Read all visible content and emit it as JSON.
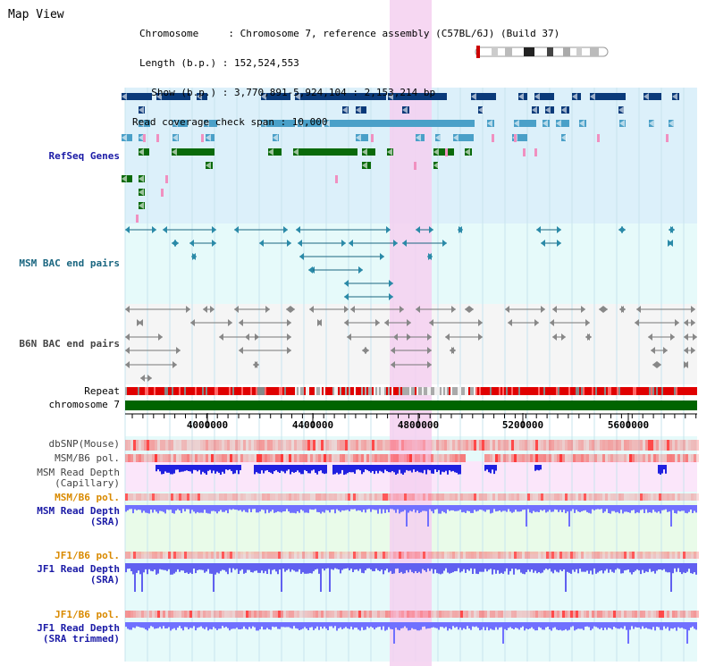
{
  "header": {
    "title": "Map View",
    "chromosome_line": "Chromosome     : Chromosome 7, reference assembly (C57BL/6J) (Build 37)",
    "length_line": "Length (b.p.) : 152,524,553",
    "show_line": "  Show (b.p.) : 3,770,891-5,924,104 : 2,153,214 bp",
    "coverage_line": "Read coverage check span : 10,000"
  },
  "tracks": {
    "refseq": "RefSeq Genes",
    "msm_bac": "MSM BAC end pairs",
    "b6n_bac": "B6N BAC end pairs",
    "repeat": "Repeat",
    "chromosome": "chromosome 7",
    "dbsnp": "dbSNP(Mouse)",
    "msm_b6_pol_1": "MSM/B6 pol.",
    "msm_read_depth_cap_1": "MSM Read Depth",
    "msm_read_depth_cap_2": "(Capillary)",
    "msm_b6_pol_2": "MSM/B6 pol.",
    "msm_read_depth_sra_1": "MSM Read Depth",
    "msm_read_depth_sra_2": "(SRA)",
    "jf1_b6_pol_1": "JF1/B6 pol.",
    "jf1_read_depth_sra_1": "JF1 Read Depth",
    "jf1_read_depth_sra_2": "(SRA)",
    "jf1_b6_pol_2": "JF1/B6 pol.",
    "jf1_read_depth_trim_1": "JF1 Read Depth",
    "jf1_read_depth_trim_2": "(SRA trimmed)"
  },
  "axis": {
    "ticks": [
      "4000000",
      "4400000",
      "4800000",
      "5200000",
      "5600000"
    ]
  },
  "colors": {
    "highlight": "#f5d0f0",
    "refseq_bg": "#dcf0fa",
    "msm_bg": "#e6fafa",
    "b6n_bg": "#f5f5f5",
    "chromosome_bar": "#006400",
    "repeat_red": "#e00000",
    "depth_blue": "#0000e0",
    "depth_sra": "#7070ff"
  }
}
